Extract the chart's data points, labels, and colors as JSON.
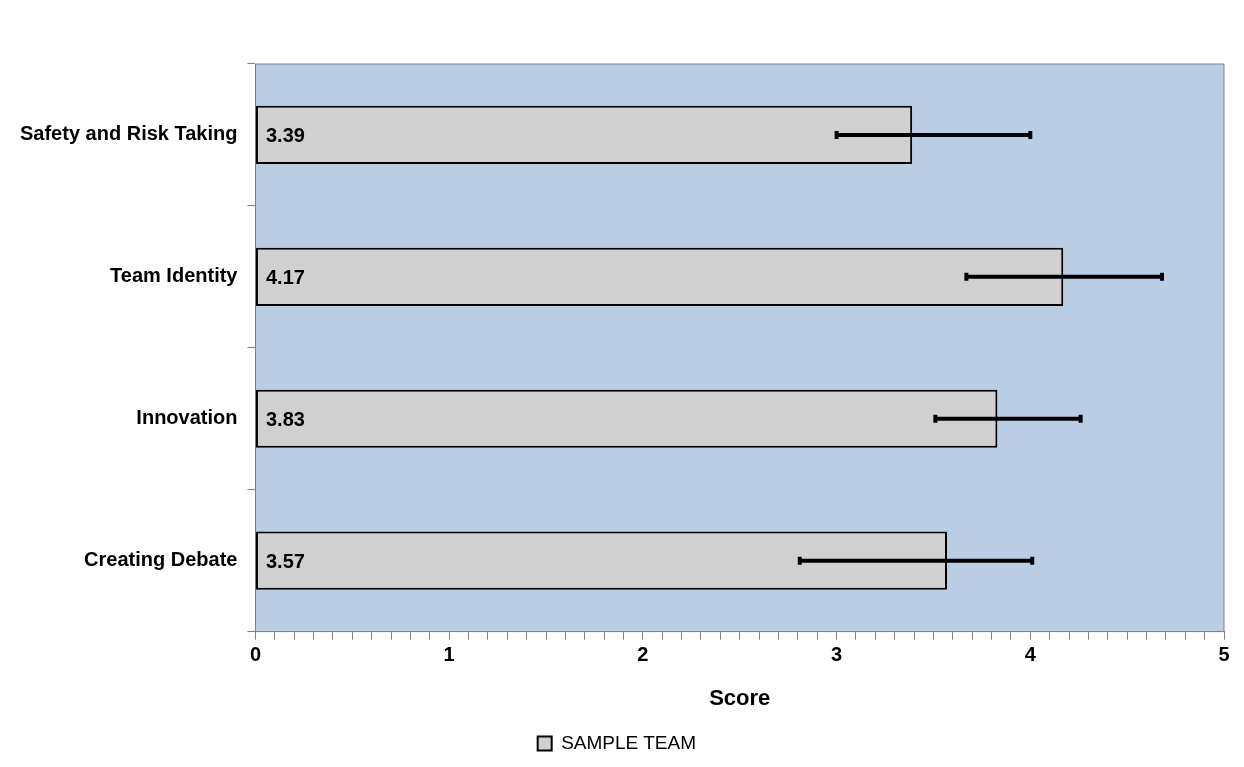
{
  "chart_data": {
    "type": "bar",
    "orientation": "horizontal",
    "xlabel": "Score",
    "categories": [
      "Safety and Risk Taking",
      "Team Identity",
      "Innovation",
      "Creating Debate"
    ],
    "series": [
      {
        "name": "SAMPLE TEAM",
        "color": "#d0d0d0",
        "values": [
          3.39,
          4.17,
          3.83,
          3.57
        ],
        "errors": [
          [
            3.0,
            4.0
          ],
          [
            3.67,
            4.68
          ],
          [
            3.51,
            4.26
          ],
          [
            2.81,
            4.01
          ]
        ]
      }
    ],
    "xlim": [
      0,
      5
    ],
    "xticks": [
      0,
      {
        "value": 0.1,
        "label": null
      },
      {
        "value": 0.2,
        "label": null
      },
      {
        "value": 0.3,
        "label": null
      },
      {
        "value": 0.4,
        "label": null
      },
      {
        "value": 0.5,
        "label": null
      },
      {
        "value": 0.6,
        "label": null
      },
      {
        "value": 0.7,
        "label": null
      },
      {
        "value": 0.8,
        "label": null
      },
      {
        "value": 0.9,
        "label": null
      },
      1,
      {
        "value": 1.1,
        "label": null
      },
      {
        "value": 1.2,
        "label": null
      },
      {
        "value": 1.3,
        "label": null
      },
      {
        "value": 1.4,
        "label": null
      },
      {
        "value": 1.5,
        "label": null
      },
      {
        "value": 1.6,
        "label": null
      },
      {
        "value": 1.7,
        "label": null
      },
      {
        "value": 1.8,
        "label": null
      },
      {
        "value": 1.9,
        "label": null
      },
      2,
      {
        "value": 2.1,
        "label": null
      },
      {
        "value": 2.2,
        "label": null
      },
      {
        "value": 2.3,
        "label": null
      },
      {
        "value": 2.4,
        "label": null
      },
      {
        "value": 2.5,
        "label": null
      },
      {
        "value": 2.6,
        "label": null
      },
      {
        "value": 2.7,
        "label": null
      },
      {
        "value": 2.8,
        "label": null
      },
      {
        "value": 2.9,
        "label": null
      },
      3,
      {
        "value": 3.1,
        "label": null
      },
      {
        "value": 3.2,
        "label": null
      },
      {
        "value": 3.3,
        "label": null
      },
      {
        "value": 3.4,
        "label": null
      },
      {
        "value": 3.5,
        "label": null
      },
      {
        "value": 3.6,
        "label": null
      },
      {
        "value": 3.7,
        "label": null
      },
      {
        "value": 3.8,
        "label": null
      },
      {
        "value": 3.9,
        "label": null
      },
      4,
      {
        "value": 4.1,
        "label": null
      },
      {
        "value": 4.2,
        "label": null
      },
      {
        "value": 4.3,
        "label": null
      },
      {
        "value": 4.4,
        "label": null
      },
      {
        "value": 4.5,
        "label": null
      },
      {
        "value": 4.6,
        "label": null
      },
      {
        "value": 4.7,
        "label": null
      },
      {
        "value": 4.8,
        "label": null
      },
      {
        "value": 4.9,
        "label": null
      },
      5
    ],
    "data_labels": true,
    "grid": false,
    "legend": "bottom"
  }
}
